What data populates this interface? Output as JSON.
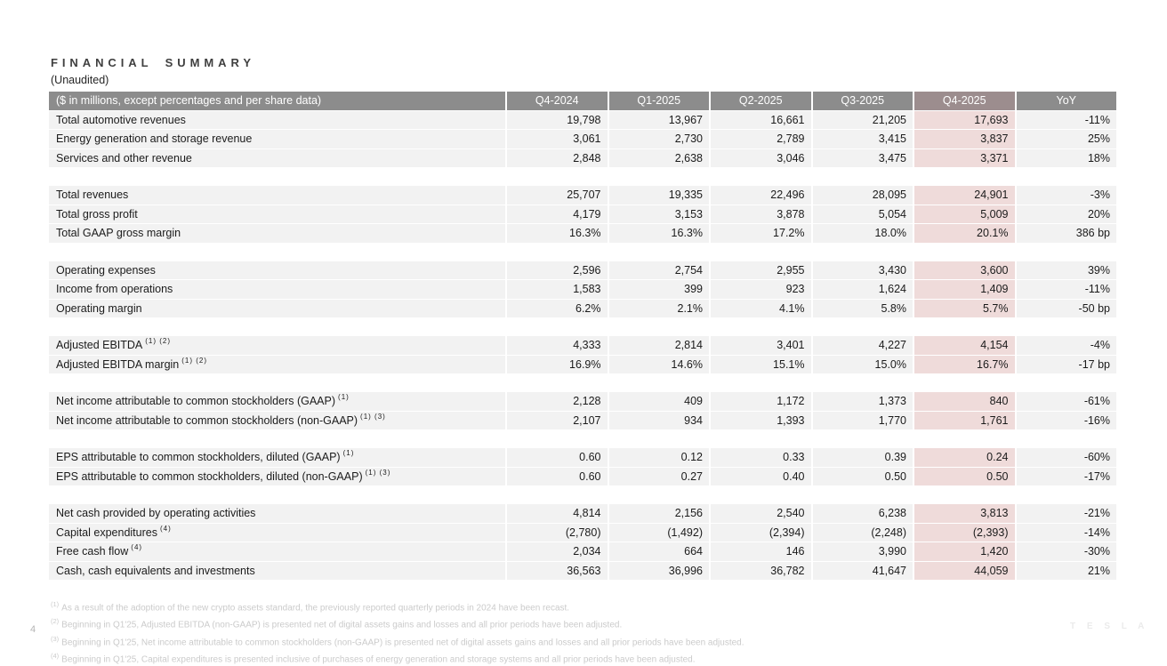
{
  "page": {
    "title": "FINANCIAL SUMMARY",
    "subtitle": "(Unaudited)",
    "page_number": "4",
    "brand": "T E S L A"
  },
  "colors": {
    "header_bg": "#8c8c8c",
    "header_highlight_bg": "#9c8d8e",
    "row_bg": "#f2f2f2",
    "highlight_column_bg": "#efdbda",
    "text": "#1b1b1b",
    "footnote_text": "#cbcbcb"
  },
  "table": {
    "header": {
      "label": "($ in millions, except percentages and per share data)",
      "columns": [
        "Q4-2024",
        "Q1-2025",
        "Q2-2025",
        "Q3-2025",
        "Q4-2025",
        "YoY"
      ],
      "highlight_column_index": 4
    },
    "sections": [
      {
        "rows": [
          {
            "label": "Total automotive revenues",
            "sup": "",
            "values": [
              "19,798",
              "13,967",
              "16,661",
              "21,205",
              "17,693",
              "-11%"
            ]
          },
          {
            "label": "Energy generation and storage revenue",
            "sup": "",
            "values": [
              "3,061",
              "2,730",
              "2,789",
              "3,415",
              "3,837",
              "25%"
            ]
          },
          {
            "label": "Services and other revenue",
            "sup": "",
            "values": [
              "2,848",
              "2,638",
              "3,046",
              "3,475",
              "3,371",
              "18%"
            ]
          }
        ]
      },
      {
        "rows": [
          {
            "label": "Total revenues",
            "sup": "",
            "values": [
              "25,707",
              "19,335",
              "22,496",
              "28,095",
              "24,901",
              "-3%"
            ]
          },
          {
            "label": "Total gross profit",
            "sup": "",
            "values": [
              "4,179",
              "3,153",
              "3,878",
              "5,054",
              "5,009",
              "20%"
            ]
          },
          {
            "label": "Total GAAP gross margin",
            "sup": "",
            "values": [
              "16.3%",
              "16.3%",
              "17.2%",
              "18.0%",
              "20.1%",
              "386 bp"
            ]
          }
        ]
      },
      {
        "rows": [
          {
            "label": "Operating expenses",
            "sup": "",
            "values": [
              "2,596",
              "2,754",
              "2,955",
              "3,430",
              "3,600",
              "39%"
            ]
          },
          {
            "label": "Income from operations",
            "sup": "",
            "values": [
              "1,583",
              "399",
              "923",
              "1,624",
              "1,409",
              "-11%"
            ]
          },
          {
            "label": "Operating margin",
            "sup": "",
            "values": [
              "6.2%",
              "2.1%",
              "4.1%",
              "5.8%",
              "5.7%",
              "-50 bp"
            ]
          }
        ]
      },
      {
        "rows": [
          {
            "label": "Adjusted EBITDA",
            "sup": "(1) (2)",
            "values": [
              "4,333",
              "2,814",
              "3,401",
              "4,227",
              "4,154",
              "-4%"
            ]
          },
          {
            "label": "Adjusted EBITDA margin",
            "sup": "(1) (2)",
            "values": [
              "16.9%",
              "14.6%",
              "15.1%",
              "15.0%",
              "16.7%",
              "-17 bp"
            ]
          }
        ]
      },
      {
        "rows": [
          {
            "label": "Net income attributable to common stockholders (GAAP)",
            "sup": "(1)",
            "values": [
              "2,128",
              "409",
              "1,172",
              "1,373",
              "840",
              "-61%"
            ]
          },
          {
            "label": "Net income attributable to common stockholders (non-GAAP)",
            "sup": "(1) (3)",
            "values": [
              "2,107",
              "934",
              "1,393",
              "1,770",
              "1,761",
              "-16%"
            ]
          }
        ]
      },
      {
        "rows": [
          {
            "label": "EPS attributable to common stockholders, diluted (GAAP)",
            "sup": "(1)",
            "values": [
              "0.60",
              "0.12",
              "0.33",
              "0.39",
              "0.24",
              "-60%"
            ]
          },
          {
            "label": "EPS attributable to common stockholders, diluted (non-GAAP)",
            "sup": "(1) (3)",
            "values": [
              "0.60",
              "0.27",
              "0.40",
              "0.50",
              "0.50",
              "-17%"
            ]
          }
        ]
      },
      {
        "rows": [
          {
            "label": "Net cash provided by operating activities",
            "sup": "",
            "values": [
              "4,814",
              "2,156",
              "2,540",
              "6,238",
              "3,813",
              "-21%"
            ]
          },
          {
            "label": "Capital expenditures",
            "sup": "(4)",
            "values": [
              "(2,780)",
              "(1,492)",
              "(2,394)",
              "(2,248)",
              "(2,393)",
              "-14%"
            ]
          },
          {
            "label": "Free cash flow",
            "sup": "(4)",
            "values": [
              "2,034",
              "664",
              "146",
              "3,990",
              "1,420",
              "-30%"
            ]
          },
          {
            "label": "Cash, cash equivalents and investments",
            "sup": "",
            "values": [
              "36,563",
              "36,996",
              "36,782",
              "41,647",
              "44,059",
              "21%"
            ]
          }
        ]
      }
    ]
  },
  "footnotes": [
    {
      "marker": "(1)",
      "text": "As a result of the adoption of the new crypto assets standard, the previously reported quarterly periods in 2024 have been recast."
    },
    {
      "marker": "(2)",
      "text": "Beginning in Q1'25, Adjusted EBITDA (non-GAAP) is presented net of digital assets gains and losses and all prior periods have been adjusted."
    },
    {
      "marker": "(3)",
      "text": "Beginning in Q1'25, Net income attributable to common stockholders (non-GAAP) is presented net of digital assets gains and losses and all prior periods have been adjusted."
    },
    {
      "marker": "(4)",
      "text": "Beginning in Q1'25, Capital expenditures is presented inclusive of purchases of energy generation and storage systems and all prior periods have been adjusted."
    }
  ]
}
